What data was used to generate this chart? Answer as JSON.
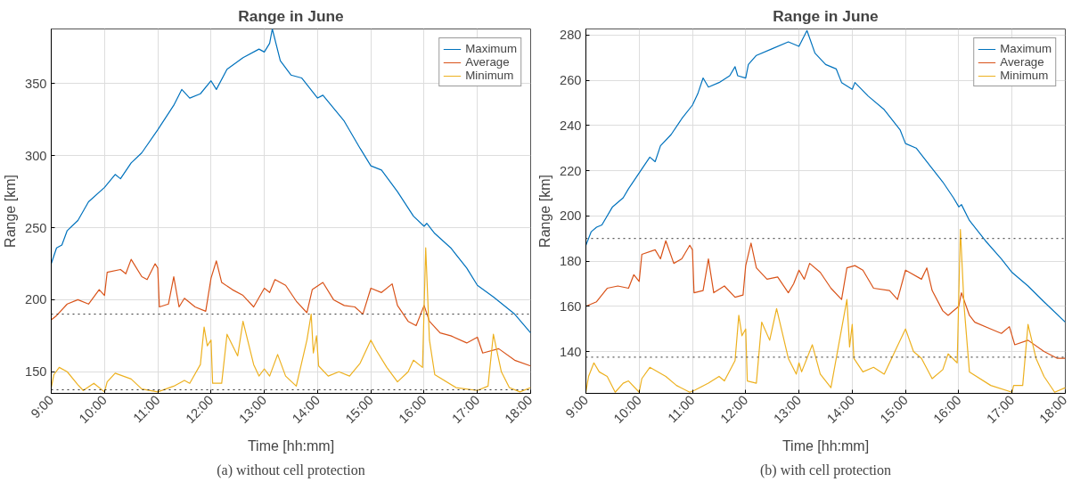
{
  "chart_data": [
    {
      "type": "line",
      "title": "Range in June",
      "xlabel": "Time [hh:mm]",
      "ylabel": "Range [km]",
      "xlim": [
        9,
        18
      ],
      "xticks": [
        {
          "value": 9,
          "label": "9:00"
        },
        {
          "value": 10,
          "label": "10:00"
        },
        {
          "value": 11,
          "label": "11:00"
        },
        {
          "value": 12,
          "label": "12:00"
        },
        {
          "value": 13,
          "label": "13:00"
        },
        {
          "value": 14,
          "label": "14:00"
        },
        {
          "value": 15,
          "label": "15:00"
        },
        {
          "value": 16,
          "label": "16:00"
        },
        {
          "value": 17,
          "label": "17:00"
        },
        {
          "value": 18,
          "label": "18:00"
        }
      ],
      "ylim": [
        135,
        388
      ],
      "yticks": [
        150,
        200,
        250,
        300,
        350
      ],
      "grid": true,
      "legend": "top right",
      "ref_lines": [
        {
          "axis": "y",
          "value": 190,
          "color": "#333333",
          "line_style": "dotted"
        },
        {
          "axis": "y",
          "value": 137.5,
          "color": "#333333",
          "line_style": "dotted"
        }
      ],
      "annotations": [
        "(a) without cell protection"
      ],
      "series": [
        {
          "name": "Maximum",
          "color": "#0072bd",
          "x": [
            9.0,
            9.1,
            9.2,
            9.3,
            9.5,
            9.7,
            10.0,
            10.2,
            10.3,
            10.5,
            10.7,
            11.0,
            11.3,
            11.45,
            11.6,
            11.8,
            12.0,
            12.1,
            12.3,
            12.6,
            12.9,
            13.0,
            13.1,
            13.15,
            13.3,
            13.5,
            13.7,
            14.0,
            14.1,
            14.5,
            14.8,
            15.0,
            15.2,
            15.5,
            15.8,
            16.0,
            16.05,
            16.2,
            16.5,
            16.8,
            17.0,
            17.3,
            17.7,
            18.0
          ],
          "values": [
            225,
            236,
            238,
            248,
            255,
            268,
            278,
            287,
            284,
            295,
            302,
            318,
            335,
            346,
            340,
            343,
            352,
            346,
            360,
            368,
            374,
            372,
            378,
            388,
            366,
            356,
            354,
            340,
            342,
            324,
            305,
            293,
            290,
            275,
            258,
            251,
            253,
            246,
            236,
            222,
            210,
            202,
            190,
            177
          ]
        },
        {
          "name": "Average",
          "color": "#d95319",
          "x": [
            9.0,
            9.1,
            9.3,
            9.5,
            9.7,
            9.9,
            10.0,
            10.05,
            10.3,
            10.4,
            10.5,
            10.7,
            10.8,
            10.95,
            11.0,
            11.03,
            11.2,
            11.3,
            11.4,
            11.5,
            11.7,
            11.9,
            12.0,
            12.1,
            12.2,
            12.4,
            12.6,
            12.8,
            13.0,
            13.1,
            13.2,
            13.4,
            13.6,
            13.8,
            13.9,
            14.1,
            14.3,
            14.5,
            14.7,
            14.85,
            15.0,
            15.2,
            15.4,
            15.5,
            15.7,
            15.85,
            16.0,
            16.1,
            16.3,
            16.5,
            16.8,
            17.0,
            17.1,
            17.4,
            17.7,
            18.0
          ],
          "values": [
            186,
            189,
            197,
            200,
            197,
            207,
            203,
            219,
            221,
            218,
            228,
            216,
            214,
            225,
            222,
            195,
            197,
            216,
            195,
            201,
            195,
            192,
            215,
            227,
            212,
            207,
            203,
            195,
            208,
            205,
            214,
            210,
            199,
            191,
            207,
            212,
            200,
            196,
            195,
            190,
            208,
            205,
            211,
            196,
            185,
            182,
            196,
            185,
            177,
            175,
            170,
            174,
            163,
            166,
            158,
            154
          ]
        },
        {
          "name": "Minimum",
          "color": "#edb120",
          "x": [
            9.0,
            9.05,
            9.15,
            9.3,
            9.5,
            9.6,
            9.8,
            10.0,
            10.05,
            10.2,
            10.5,
            10.7,
            11.0,
            11.3,
            11.5,
            11.6,
            11.8,
            11.87,
            11.93,
            12.0,
            12.03,
            12.2,
            12.3,
            12.5,
            12.6,
            12.8,
            12.9,
            13.0,
            13.1,
            13.25,
            13.4,
            13.6,
            13.8,
            13.88,
            13.92,
            13.98,
            14.02,
            14.2,
            14.4,
            14.6,
            14.8,
            15.0,
            15.1,
            15.3,
            15.5,
            15.7,
            15.8,
            15.97,
            16.03,
            16.1,
            16.2,
            16.6,
            17.0,
            17.2,
            17.3,
            17.45,
            17.6,
            17.8,
            18.0
          ],
          "values": [
            139,
            148,
            153,
            150,
            141,
            137,
            142,
            136,
            143,
            149,
            145,
            138,
            136,
            140,
            144,
            142,
            155,
            181,
            168,
            172,
            142,
            142,
            176,
            161,
            185,
            155,
            147,
            152,
            147,
            162,
            147,
            140,
            172,
            190,
            163,
            175,
            154,
            147,
            150,
            147,
            156,
            172,
            165,
            153,
            143,
            150,
            158,
            153,
            236,
            172,
            148,
            139,
            137,
            140,
            176,
            150,
            139,
            136,
            139
          ]
        }
      ]
    },
    {
      "type": "line",
      "title": "Range in June",
      "xlabel": "Time [hh:mm]",
      "ylabel": "Range [km]",
      "xlim": [
        9,
        18
      ],
      "xticks": [
        {
          "value": 9,
          "label": "9:00"
        },
        {
          "value": 10,
          "label": "10:00"
        },
        {
          "value": 11,
          "label": "11:00"
        },
        {
          "value": 12,
          "label": "12:00"
        },
        {
          "value": 13,
          "label": "13:00"
        },
        {
          "value": 14,
          "label": "14:00"
        },
        {
          "value": 15,
          "label": "15:00"
        },
        {
          "value": 16,
          "label": "16:00"
        },
        {
          "value": 17,
          "label": "17:00"
        },
        {
          "value": 18,
          "label": "18:00"
        }
      ],
      "ylim": [
        121.5,
        282.7
      ],
      "yticks": [
        140,
        160,
        180,
        200,
        220,
        240,
        260,
        280
      ],
      "grid": true,
      "legend": "top right",
      "ref_lines": [
        {
          "axis": "y",
          "value": 190,
          "color": "#333333",
          "line_style": "dotted"
        },
        {
          "axis": "y",
          "value": 137.5,
          "color": "#333333",
          "line_style": "dotted"
        }
      ],
      "annotations": [
        "(b) with cell protection"
      ],
      "series": [
        {
          "name": "Maximum",
          "color": "#0072bd",
          "x": [
            9.0,
            9.1,
            9.2,
            9.3,
            9.5,
            9.7,
            9.8,
            10.0,
            10.2,
            10.3,
            10.4,
            10.6,
            10.8,
            11.0,
            11.1,
            11.2,
            11.3,
            11.5,
            11.7,
            11.8,
            11.85,
            12.0,
            12.05,
            12.2,
            12.5,
            12.8,
            13.0,
            13.15,
            13.3,
            13.5,
            13.7,
            13.8,
            14.0,
            14.05,
            14.3,
            14.6,
            14.9,
            15.0,
            15.2,
            15.5,
            15.7,
            15.9,
            16.0,
            16.05,
            16.2,
            16.5,
            16.8,
            17.0,
            17.3,
            17.6,
            18.0
          ],
          "values": [
            187,
            193,
            195,
            196,
            204,
            208,
            212,
            219,
            226,
            224,
            231,
            236,
            243,
            249,
            254,
            261,
            257,
            259,
            262,
            266,
            262,
            261,
            267,
            271,
            274,
            277,
            275,
            282,
            272,
            267,
            265,
            259,
            256,
            259,
            253,
            247,
            238,
            232,
            230,
            221,
            215,
            208,
            204,
            205,
            198,
            189,
            181,
            175,
            169,
            162,
            153
          ]
        },
        {
          "name": "Average",
          "color": "#d95319",
          "x": [
            9.0,
            9.2,
            9.4,
            9.6,
            9.8,
            9.9,
            10.0,
            10.05,
            10.3,
            10.4,
            10.5,
            10.65,
            10.8,
            10.95,
            11.0,
            11.03,
            11.2,
            11.3,
            11.4,
            11.6,
            11.8,
            11.95,
            12.0,
            12.1,
            12.2,
            12.4,
            12.6,
            12.8,
            12.9,
            13.0,
            13.1,
            13.2,
            13.4,
            13.6,
            13.8,
            13.9,
            14.05,
            14.2,
            14.4,
            14.7,
            14.85,
            15.0,
            15.3,
            15.4,
            15.5,
            15.7,
            15.8,
            16.0,
            16.05,
            16.2,
            16.3,
            16.6,
            16.8,
            16.95,
            17.05,
            17.3,
            17.6,
            17.85,
            18.0
          ],
          "values": [
            160,
            162,
            168,
            169,
            168,
            174,
            171,
            183,
            185,
            181,
            189,
            179,
            181,
            187,
            185,
            166,
            167,
            181,
            166,
            169,
            164,
            165,
            178,
            188,
            177,
            172,
            173,
            166,
            170,
            176,
            172,
            179,
            175,
            168,
            163,
            177,
            178,
            176,
            168,
            167,
            163,
            176,
            172,
            177,
            167,
            158,
            156,
            160,
            166,
            156,
            153,
            150,
            148,
            151,
            143,
            145,
            140,
            137,
            137
          ]
        },
        {
          "name": "Minimum",
          "color": "#edb120",
          "x": [
            9.0,
            9.05,
            9.15,
            9.25,
            9.4,
            9.55,
            9.7,
            9.8,
            10.0,
            10.05,
            10.2,
            10.5,
            10.7,
            10.95,
            11.05,
            11.3,
            11.5,
            11.6,
            11.8,
            11.87,
            11.93,
            12.0,
            12.03,
            12.2,
            12.3,
            12.45,
            12.58,
            12.8,
            12.95,
            13.0,
            13.05,
            13.25,
            13.4,
            13.6,
            13.8,
            13.9,
            13.95,
            14.0,
            14.03,
            14.2,
            14.4,
            14.6,
            14.8,
            15.0,
            15.15,
            15.3,
            15.5,
            15.7,
            15.8,
            15.97,
            16.03,
            16.1,
            16.2,
            16.6,
            17.0,
            17.03,
            17.2,
            17.3,
            17.45,
            17.6,
            17.8,
            18.0
          ],
          "values": [
            122,
            129,
            135,
            131,
            129,
            122,
            126,
            127,
            122,
            128,
            133,
            129,
            125,
            122,
            123,
            126,
            129,
            127,
            136,
            156,
            147,
            150,
            127,
            126,
            153,
            145,
            159,
            137,
            130,
            135,
            131,
            143,
            130,
            124,
            150,
            163,
            142,
            152,
            137,
            131,
            133,
            130,
            140,
            150,
            140,
            137,
            128,
            132,
            139,
            135,
            194,
            160,
            131,
            125,
            122,
            125,
            125,
            152,
            137,
            129,
            122,
            124
          ]
        }
      ]
    }
  ]
}
